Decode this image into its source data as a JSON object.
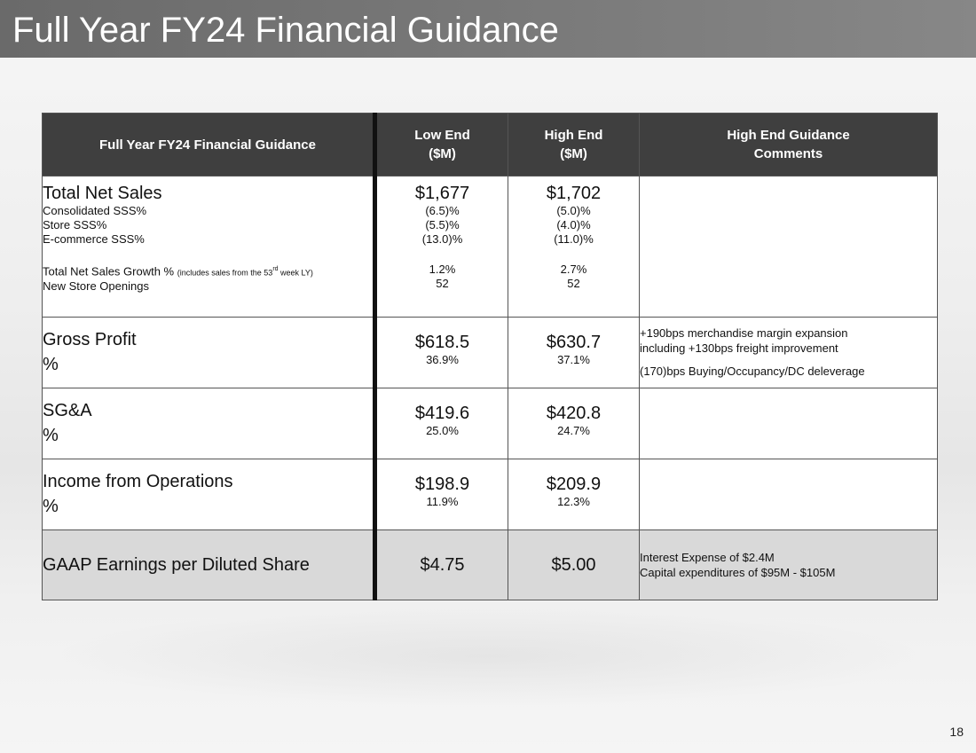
{
  "title": "Full Year FY24 Financial Guidance",
  "table": {
    "headers": {
      "col1": "Full Year FY24 Financial Guidance",
      "low_line1": "Low End",
      "low_line2": "($M)",
      "high_line1": "High End",
      "high_line2": "($M)",
      "comments_line1": "High End Guidance",
      "comments_line2": "Comments"
    },
    "sales": {
      "label": "Total Net Sales",
      "low": "$1,677",
      "high": "$1,702",
      "consolidated_label": "Consolidated SSS%",
      "consolidated_low": "(6.5)%",
      "consolidated_high": "(5.0)%",
      "store_label": "Store SSS%",
      "store_low": "(5.5)%",
      "store_high": "(4.0)%",
      "ecom_label": "E-commerce SSS%",
      "ecom_low": "(13.0)%",
      "ecom_high": "(11.0)%",
      "growth_label": "Total Net Sales Growth %",
      "growth_note_prefix": "(includes sales from the  53",
      "growth_note_sup": "rd",
      "growth_note_suffix": " week LY)",
      "growth_low": "1.2%",
      "growth_high": "2.7%",
      "stores_label": "New Store Openings",
      "stores_low": "52",
      "stores_high": "52"
    },
    "gross_profit": {
      "label": "Gross Profit",
      "pct_label": "%",
      "low": "$618.5",
      "low_pct": "36.9%",
      "high": "$630.7",
      "high_pct": "37.1%",
      "comment1": "+190bps merchandise margin expansion",
      "comment2": "including +130bps freight improvement",
      "comment3": "(170)bps Buying/Occupancy/DC deleverage"
    },
    "sga": {
      "label": "SG&A",
      "pct_label": "%",
      "low": "$419.6",
      "low_pct": "25.0%",
      "high": "$420.8",
      "high_pct": "24.7%"
    },
    "ifo": {
      "label": "Income from Operations",
      "pct_label": "%",
      "low": "$198.9",
      "low_pct": "11.9%",
      "high": "$209.9",
      "high_pct": "12.3%"
    },
    "eps": {
      "label": "GAAP Earnings per Diluted Share",
      "low": "$4.75",
      "high": "$5.00",
      "comment1": "Interest Expense of $2.4M",
      "comment2": "Capital expenditures of $95M - $105M"
    }
  },
  "page_number": "18"
}
